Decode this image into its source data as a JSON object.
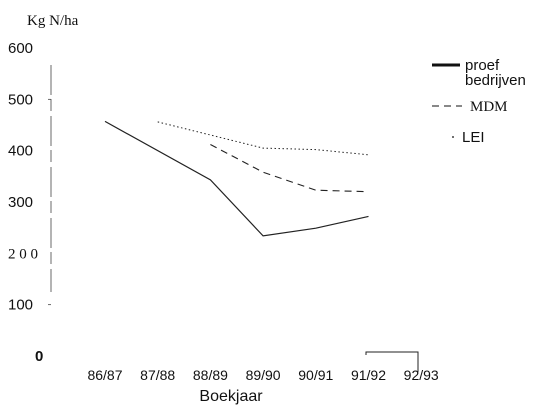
{
  "chart_data": {
    "type": "line",
    "ylabel": "Kg N/ha",
    "xlabel": "Boekjaar",
    "categories": [
      "86/87",
      "87/88",
      "88/89",
      "89/90",
      "90/91",
      "91/92",
      "92/93"
    ],
    "ylim": [
      0,
      600
    ],
    "yticks": [
      {
        "value": 0,
        "label": "0"
      },
      {
        "value": 100,
        "label": "100"
      },
      {
        "value": 200,
        "label": "2 0 0"
      },
      {
        "value": 300,
        "label": "300"
      },
      {
        "value": 400,
        "label": "400"
      },
      {
        "value": 500,
        "label": "500"
      },
      {
        "value": 600,
        "label": "600"
      }
    ],
    "grid": false,
    "legend_position": "right",
    "series": [
      {
        "name": "proef bedrijven",
        "legend_lines": [
          "proef",
          "bedrijven"
        ],
        "style": "solid",
        "x": [
          "86/87",
          "88/89",
          "89/90",
          "90/91",
          "91/92"
        ],
        "values": [
          457,
          343,
          234,
          249,
          272
        ]
      },
      {
        "name": "MDM",
        "legend_lines": [
          "MDM"
        ],
        "style": "dashed",
        "x": [
          "88/89",
          "89/90",
          "90/91",
          "91/92"
        ],
        "values": [
          412,
          358,
          323,
          320
        ]
      },
      {
        "name": "LEI",
        "legend_lines": [
          "LEI"
        ],
        "style": "dotted",
        "x": [
          "87/88",
          "89/90",
          "90/91",
          "91/92"
        ],
        "values": [
          456,
          405,
          402,
          392
        ]
      }
    ]
  }
}
